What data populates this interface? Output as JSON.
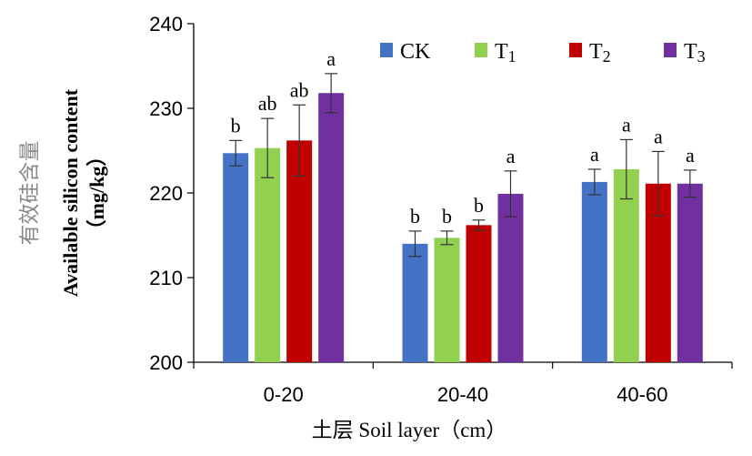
{
  "chart_data": {
    "type": "bar",
    "xlabel": "土层 Soil layer（cm）",
    "ylabel_cn": "有效硅含量",
    "ylabel_en": "Available silicon content",
    "ylabel_unit": "（mg/kg）",
    "ylim": [
      200,
      240
    ],
    "yticks": [
      "200",
      "210",
      "220",
      "230",
      "240"
    ],
    "categories": [
      "0-20",
      "20-40",
      "40-60"
    ],
    "legend_position": "top-right",
    "series": [
      {
        "name": "CK",
        "sub": "",
        "color": "#4472C4",
        "values": [
          224.7,
          214.0,
          221.3
        ],
        "errors": [
          1.5,
          1.5,
          1.5
        ],
        "labels": [
          "b",
          "b",
          "a"
        ]
      },
      {
        "name": "T",
        "sub": "1",
        "color": "#92D050",
        "values": [
          225.3,
          214.7,
          222.8
        ],
        "errors": [
          3.5,
          0.8,
          3.5
        ],
        "labels": [
          "ab",
          "b",
          "a"
        ]
      },
      {
        "name": "T",
        "sub": "2",
        "color": "#C00000",
        "values": [
          226.2,
          216.2,
          221.1
        ],
        "errors": [
          4.2,
          0.6,
          3.8
        ],
        "labels": [
          "ab",
          "b",
          "a"
        ]
      },
      {
        "name": "T",
        "sub": "3",
        "color": "#7030A0",
        "values": [
          231.8,
          219.9,
          221.1
        ],
        "errors": [
          2.3,
          2.7,
          1.6
        ],
        "labels": [
          "a",
          "a",
          "a"
        ]
      }
    ]
  }
}
